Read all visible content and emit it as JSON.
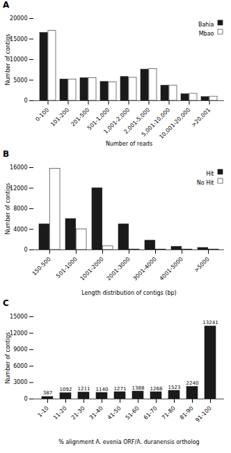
{
  "chart_data": [
    {
      "type": "bar",
      "title": "A",
      "categories": [
        "0-100",
        "101-200",
        "201-500",
        "501-1,000",
        "1,001-2,000",
        "2,001-5,000",
        "5,001-10,000",
        "10,001-20,000",
        ">20,001"
      ],
      "series": [
        {
          "name": "Bahia",
          "color": "#1a1a1a",
          "values": [
            16500,
            5200,
            5500,
            4600,
            5800,
            7600,
            3700,
            1600,
            900
          ]
        },
        {
          "name": "Mbao",
          "color": "#ffffff",
          "values": [
            17000,
            5200,
            5500,
            4500,
            5600,
            7700,
            3700,
            1700,
            1000
          ]
        }
      ],
      "xlabel": "Number of reads",
      "ylabel": "Number of contigs",
      "ylim": [
        0,
        20000
      ],
      "yticks": [
        0,
        5000,
        10000,
        15000,
        20000
      ],
      "legend": "upper right",
      "grid": false
    },
    {
      "type": "bar",
      "title": "B",
      "categories": [
        "150-500",
        "501-1000",
        "1001-2000",
        "2001-3000",
        "3001-4000",
        "4001-5000",
        ">5000"
      ],
      "series": [
        {
          "name": "Hit",
          "color": "#1a1a1a",
          "values": [
            5000,
            6000,
            12000,
            5000,
            1800,
            600,
            400
          ]
        },
        {
          "name": "No Hit",
          "color": "#ffffff",
          "values": [
            15800,
            4000,
            700,
            100,
            100,
            100,
            100
          ]
        }
      ],
      "xlabel": "Length distribution of contigs (bp)",
      "ylabel": "Number of contigs",
      "ylim": [
        0,
        16000
      ],
      "yticks": [
        0,
        4000,
        8000,
        12000,
        16000
      ],
      "legend": "upper right",
      "grid": false
    },
    {
      "type": "bar",
      "title": "C",
      "categories": [
        "1-10",
        "11-20",
        "21-30",
        "31-40",
        "41-50",
        "51-60",
        "61-70",
        "71-80",
        "81-90",
        "91-100"
      ],
      "values": [
        387,
        1092,
        1211,
        1140,
        1271,
        1388,
        1268,
        1523,
        2240,
        13241
      ],
      "color": "#1a1a1a",
      "xlabel": "% alignment A. evenia ORF/A. duranensis ortholog",
      "ylabel": "Number of contigs",
      "ylim": [
        0,
        15000
      ],
      "yticks": [
        0,
        3000,
        6000,
        9000,
        12000,
        15000
      ],
      "data_labels": true,
      "grid": false
    }
  ]
}
